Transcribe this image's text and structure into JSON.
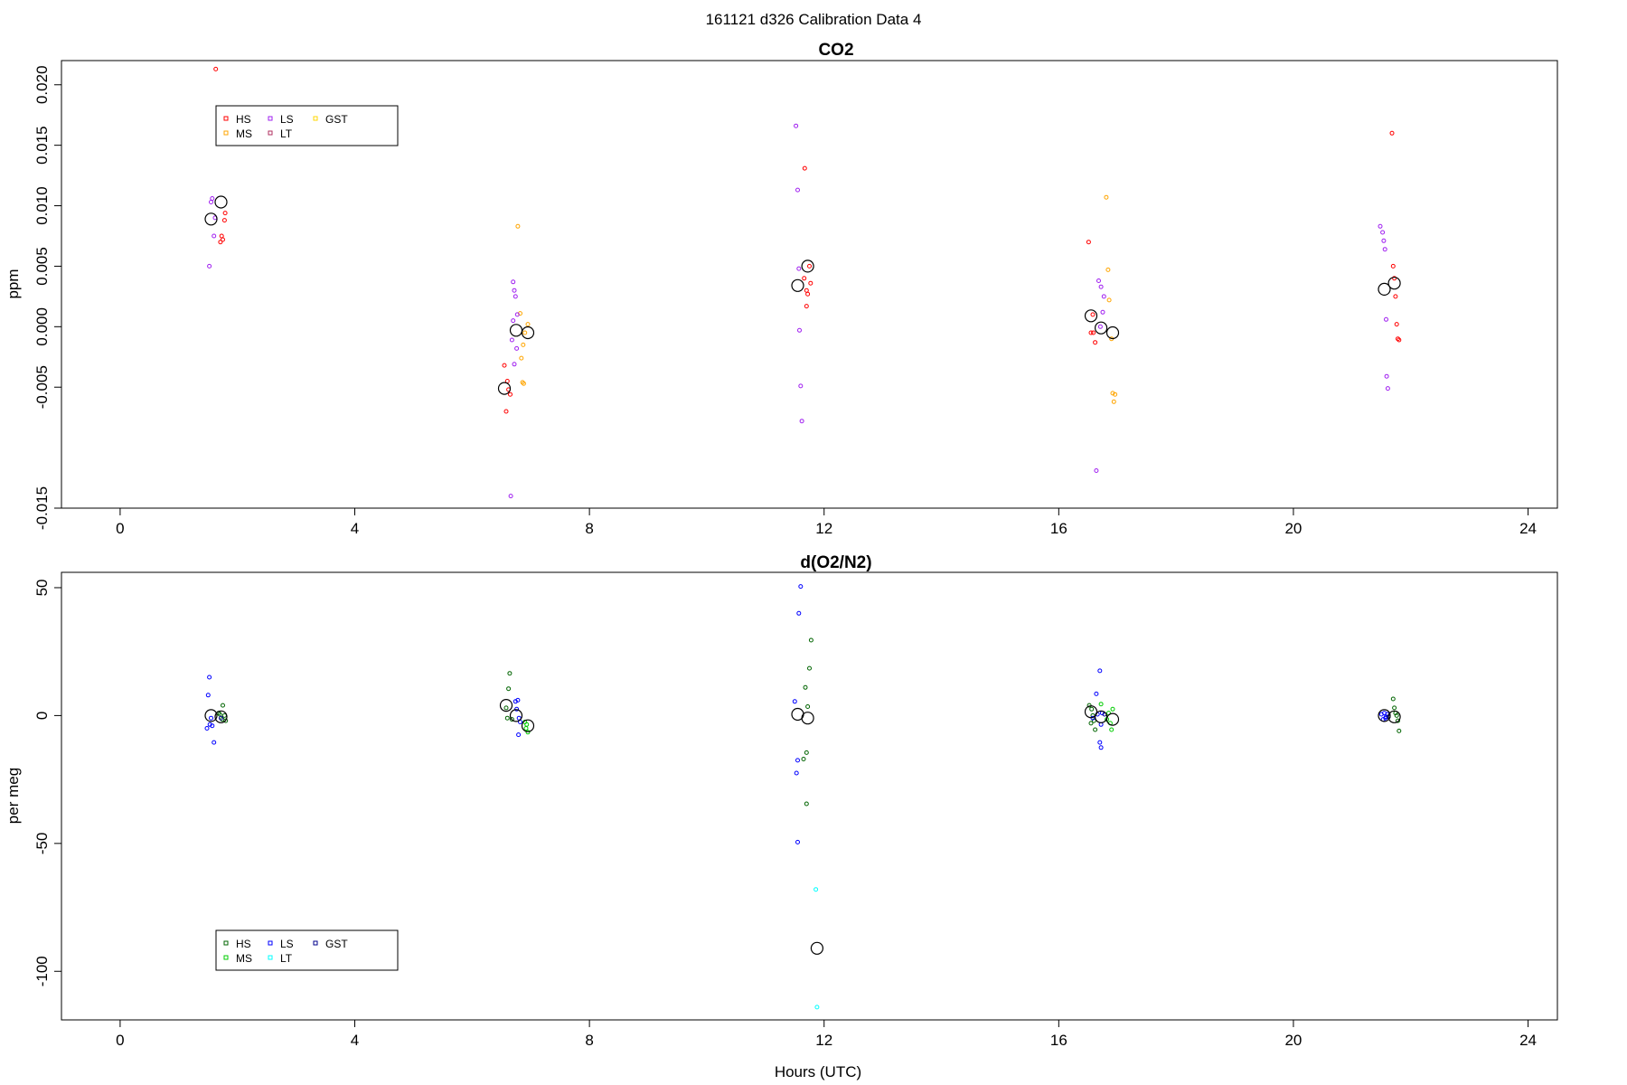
{
  "figure": {
    "title": "161121   d326   Calibration Data 4",
    "xlabel": "Hours (UTC)"
  },
  "chart_data": [
    {
      "type": "scatter",
      "title": "CO2",
      "ylabel": "ppm",
      "xlabel": "",
      "xlim": [
        -1.0,
        24.5
      ],
      "ylim": [
        -0.015,
        0.022
      ],
      "xticks": [
        0,
        4,
        8,
        12,
        16,
        20,
        24
      ],
      "yticks": [
        -0.015,
        -0.005,
        0.0,
        0.005,
        0.01,
        0.015,
        0.02
      ],
      "ytick_labels": [
        "-0.015",
        "-0.005",
        "0.000",
        "0.005",
        "0.010",
        "0.015",
        "0.020"
      ],
      "grid": false,
      "legend": {
        "placement": "top-left",
        "entries": [
          {
            "label": "HS",
            "color": "#ff0000"
          },
          {
            "label": "MS",
            "color": "#ffa500"
          },
          {
            "label": "LS",
            "color": "#a020f0"
          },
          {
            "label": "LT",
            "color": "#b03060"
          },
          {
            "label": "GST",
            "color": "#ffd700"
          }
        ]
      },
      "series": [
        {
          "name": "HS",
          "color": "#ff0000",
          "points": [
            [
              1.75,
              0.0072
            ],
            [
              1.73,
              0.0075
            ],
            [
              1.78,
              0.0088
            ],
            [
              1.79,
              0.0094
            ],
            [
              1.71,
              0.007
            ],
            [
              1.63,
              0.0213
            ],
            [
              6.55,
              -0.0032
            ],
            [
              6.6,
              -0.0045
            ],
            [
              6.62,
              -0.0052
            ],
            [
              6.65,
              -0.0056
            ],
            [
              6.58,
              -0.007
            ],
            [
              11.66,
              0.004
            ],
            [
              11.7,
              0.003
            ],
            [
              11.72,
              0.0027
            ],
            [
              11.77,
              0.0036
            ],
            [
              11.75,
              0.005
            ],
            [
              11.7,
              0.0017
            ],
            [
              11.67,
              0.0131
            ],
            [
              16.51,
              0.007
            ],
            [
              16.55,
              -0.0005
            ],
            [
              16.59,
              -0.0005
            ],
            [
              16.62,
              -0.0013
            ],
            [
              16.58,
              0.001
            ],
            [
              21.7,
              0.005
            ],
            [
              21.72,
              0.004
            ],
            [
              21.74,
              0.0025
            ],
            [
              21.76,
              0.0002
            ],
            [
              21.78,
              -0.001
            ],
            [
              21.8,
              -0.0011
            ],
            [
              21.68,
              0.016
            ]
          ]
        },
        {
          "name": "MS",
          "color": "#ffa500",
          "points": [
            [
              6.78,
              0.0083
            ],
            [
              6.82,
              0.0011
            ],
            [
              6.87,
              -0.0015
            ],
            [
              6.9,
              -0.0005
            ],
            [
              6.84,
              -0.0026
            ],
            [
              6.86,
              -0.0046
            ],
            [
              6.88,
              -0.0047
            ],
            [
              6.95,
              0.0002
            ],
            [
              16.81,
              0.0107
            ],
            [
              16.84,
              0.0047
            ],
            [
              16.86,
              0.0022
            ],
            [
              16.9,
              -0.001
            ],
            [
              16.92,
              -0.0055
            ],
            [
              16.94,
              -0.0062
            ],
            [
              16.96,
              -0.0056
            ]
          ]
        },
        {
          "name": "LS",
          "color": "#a020f0",
          "points": [
            [
              1.52,
              0.005
            ],
            [
              1.55,
              0.0103
            ],
            [
              1.57,
              0.0106
            ],
            [
              1.62,
              0.009
            ],
            [
              1.6,
              0.0075
            ],
            [
              6.7,
              0.0037
            ],
            [
              6.72,
              0.003
            ],
            [
              6.74,
              0.0025
            ],
            [
              6.77,
              0.001
            ],
            [
              6.7,
              0.0005
            ],
            [
              6.68,
              -0.0011
            ],
            [
              6.76,
              -0.0018
            ],
            [
              6.72,
              -0.0031
            ],
            [
              6.66,
              -0.014
            ],
            [
              11.52,
              0.0166
            ],
            [
              11.55,
              0.0113
            ],
            [
              11.57,
              0.0048
            ],
            [
              11.58,
              -0.0003
            ],
            [
              11.6,
              -0.0049
            ],
            [
              11.62,
              -0.0078
            ],
            [
              16.68,
              0.0038
            ],
            [
              16.72,
              0.0033
            ],
            [
              16.75,
              0.0012
            ],
            [
              16.71,
              0.0
            ],
            [
              16.64,
              -0.0119
            ],
            [
              16.77,
              0.0025
            ],
            [
              21.48,
              0.0083
            ],
            [
              21.52,
              0.0078
            ],
            [
              21.54,
              0.0071
            ],
            [
              21.56,
              0.0064
            ],
            [
              21.58,
              0.0006
            ],
            [
              21.59,
              -0.0041
            ],
            [
              21.61,
              -0.0051
            ]
          ]
        },
        {
          "name": "LT",
          "color": "#b03060",
          "points": []
        },
        {
          "name": "GST",
          "color": "#ffd700",
          "points": []
        },
        {
          "name": "",
          "color": "#000000",
          "size": "large",
          "points": [
            [
              1.55,
              0.0089
            ],
            [
              1.72,
              0.0103
            ],
            [
              6.55,
              -0.0051
            ],
            [
              6.75,
              -0.0003
            ],
            [
              6.95,
              -0.0005
            ],
            [
              11.55,
              0.0034
            ],
            [
              11.72,
              0.005
            ],
            [
              16.55,
              0.0009
            ],
            [
              16.72,
              -0.0001
            ],
            [
              16.92,
              -0.0005
            ],
            [
              21.55,
              0.0031
            ],
            [
              21.72,
              0.0036
            ]
          ]
        }
      ]
    },
    {
      "type": "scatter",
      "title": "d(O2/N2)",
      "ylabel": "per meg",
      "xlabel": "Hours (UTC)",
      "xlim": [
        -1.0,
        24.5
      ],
      "ylim": [
        -119.0,
        56.0
      ],
      "xticks": [
        0,
        4,
        8,
        12,
        16,
        20,
        24
      ],
      "yticks": [
        -100,
        -50,
        0,
        50
      ],
      "ytick_labels": [
        "-100",
        "-50",
        "0",
        "50"
      ],
      "grid": false,
      "legend": {
        "placement": "bottom-left",
        "entries": [
          {
            "label": "HS",
            "color": "#006400"
          },
          {
            "label": "MS",
            "color": "#00cc00"
          },
          {
            "label": "LS",
            "color": "#0000ff"
          },
          {
            "label": "LT",
            "color": "#00ffff"
          },
          {
            "label": "GST",
            "color": "#00008b"
          }
        ]
      },
      "series": [
        {
          "name": "HS",
          "color": "#006400",
          "points": [
            [
              1.7,
              0.5
            ],
            [
              1.74,
              -1.5
            ],
            [
              1.78,
              0.0
            ],
            [
              1.8,
              -2.0
            ],
            [
              1.75,
              4.0
            ],
            [
              1.68,
              1.0
            ],
            [
              6.58,
              3.0
            ],
            [
              6.62,
              10.5
            ],
            [
              6.64,
              16.5
            ],
            [
              6.6,
              -1.0
            ],
            [
              6.68,
              -1.5
            ],
            [
              11.68,
              11.0
            ],
            [
              11.72,
              3.5
            ],
            [
              11.75,
              18.5
            ],
            [
              11.78,
              29.5
            ],
            [
              11.7,
              -14.5
            ],
            [
              11.65,
              -17.0
            ],
            [
              11.7,
              -34.5
            ],
            [
              16.52,
              4.0
            ],
            [
              16.56,
              2.5
            ],
            [
              16.58,
              0.0
            ],
            [
              16.6,
              -2.0
            ],
            [
              16.62,
              -5.5
            ],
            [
              16.55,
              -3.0
            ],
            [
              21.7,
              6.5
            ],
            [
              21.72,
              3.0
            ],
            [
              21.74,
              1.0
            ],
            [
              21.76,
              0.0
            ],
            [
              21.78,
              -2.0
            ],
            [
              21.8,
              -6.0
            ]
          ]
        },
        {
          "name": "MS",
          "color": "#00cc00",
          "points": [
            [
              6.9,
              -2.5
            ],
            [
              6.92,
              -5.0
            ],
            [
              6.95,
              -6.5
            ],
            [
              6.93,
              -3.5
            ],
            [
              16.82,
              -1.5
            ],
            [
              16.85,
              1.0
            ],
            [
              16.88,
              -3.0
            ],
            [
              16.9,
              -5.5
            ],
            [
              16.92,
              2.5
            ],
            [
              16.72,
              4.5
            ]
          ]
        },
        {
          "name": "LS",
          "color": "#0000ff",
          "points": [
            [
              1.5,
              8.0
            ],
            [
              1.52,
              15.0
            ],
            [
              1.55,
              -1.0
            ],
            [
              1.57,
              -4.0
            ],
            [
              1.53,
              -3.5
            ],
            [
              1.6,
              -10.5
            ],
            [
              1.48,
              -5.0
            ],
            [
              6.74,
              5.5
            ],
            [
              6.76,
              2.5
            ],
            [
              6.78,
              6.0
            ],
            [
              6.8,
              -1.0
            ],
            [
              6.82,
              -2.5
            ],
            [
              6.79,
              -7.5
            ],
            [
              11.5,
              5.5
            ],
            [
              11.55,
              -17.5
            ],
            [
              11.53,
              -22.5
            ],
            [
              11.57,
              40.0
            ],
            [
              11.6,
              50.5
            ],
            [
              11.55,
              -49.5
            ],
            [
              16.64,
              8.5
            ],
            [
              16.7,
              17.5
            ],
            [
              16.66,
              0.5
            ],
            [
              16.72,
              -3.5
            ],
            [
              16.7,
              -10.5
            ],
            [
              16.72,
              -12.5
            ],
            [
              16.74,
              1.0
            ],
            [
              16.58,
              -1.0
            ],
            [
              21.5,
              0.5
            ],
            [
              21.53,
              -1.5
            ],
            [
              21.55,
              1.0
            ],
            [
              21.58,
              -0.5
            ],
            [
              21.6,
              0.5
            ],
            [
              21.57,
              -1.0
            ]
          ]
        },
        {
          "name": "LT",
          "color": "#00ffff",
          "points": [
            [
              11.86,
              -68.0
            ],
            [
              11.88,
              -114.0
            ]
          ]
        },
        {
          "name": "GST",
          "color": "#00008b",
          "points": [
            [
              1.72,
              -1.0
            ],
            [
              16.78,
              0.5
            ],
            [
              21.62,
              -0.5
            ]
          ]
        },
        {
          "name": "",
          "color": "#000000",
          "size": "large",
          "points": [
            [
              1.55,
              0.0
            ],
            [
              1.72,
              -0.5
            ],
            [
              6.58,
              4.0
            ],
            [
              6.75,
              0.0
            ],
            [
              6.95,
              -4.0
            ],
            [
              11.55,
              0.5
            ],
            [
              11.72,
              -1.0
            ],
            [
              11.88,
              -91.0
            ],
            [
              16.55,
              1.5
            ],
            [
              16.72,
              -0.5
            ],
            [
              16.92,
              -1.5
            ],
            [
              21.55,
              0.0
            ],
            [
              21.72,
              -0.5
            ]
          ]
        }
      ]
    }
  ]
}
